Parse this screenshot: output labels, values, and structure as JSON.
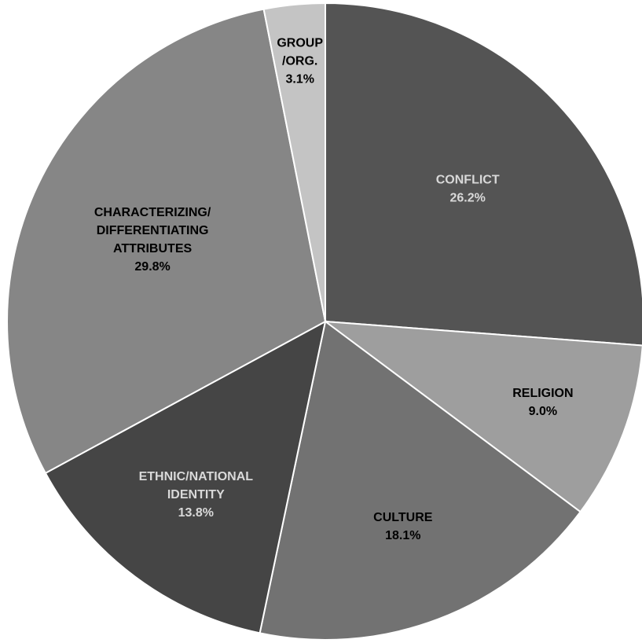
{
  "chart_data": {
    "type": "pie",
    "title": "",
    "unit": "%",
    "start_angle_deg": 0,
    "direction": "clockwise",
    "slices": [
      {
        "key": "conflict",
        "label_lines": [
          "CONFLICT"
        ],
        "value": 26.2,
        "value_label": "26.2%",
        "color": "#545454",
        "text_color": "#d9d9d9"
      },
      {
        "key": "religion",
        "label_lines": [
          "RELIGION"
        ],
        "value": 9.0,
        "value_label": "9.0%",
        "color": "#9e9e9e",
        "text_color": "#000000"
      },
      {
        "key": "culture",
        "label_lines": [
          "CULTURE"
        ],
        "value": 18.1,
        "value_label": "18.1%",
        "color": "#727272",
        "text_color": "#000000"
      },
      {
        "key": "ethnic-national-identity",
        "label_lines": [
          "ETHNIC/NATIONAL",
          "IDENTITY"
        ],
        "value": 13.8,
        "value_label": "13.8%",
        "color": "#454545",
        "text_color": "#d9d9d9"
      },
      {
        "key": "characterizing-differentiating-attributes",
        "label_lines": [
          "CHARACTERIZING/",
          "DIFFERENTIATING",
          "ATTRIBUTES"
        ],
        "value": 29.8,
        "value_label": "29.8%",
        "color": "#868686",
        "text_color": "#000000"
      },
      {
        "key": "group-org",
        "label_lines": [
          "GROUP",
          "/ORG."
        ],
        "value": 3.1,
        "value_label": "3.1%",
        "color": "#c4c4c4",
        "text_color": "#000000"
      }
    ]
  }
}
